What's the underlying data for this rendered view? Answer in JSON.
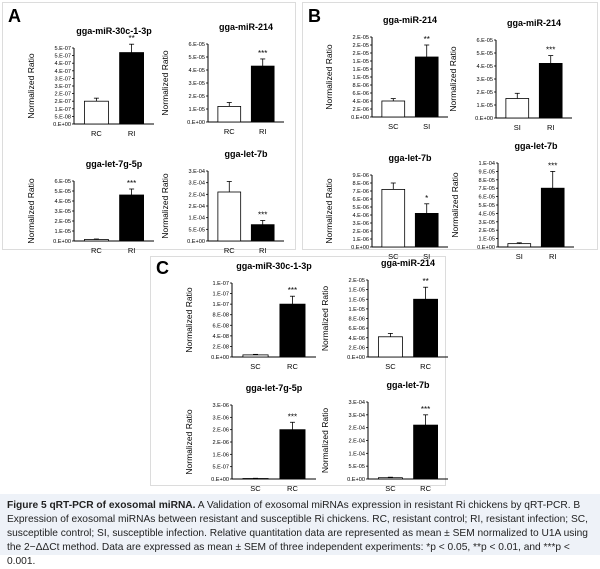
{
  "panels": {
    "a": "A",
    "b": "B",
    "c": "C"
  },
  "ylabel": "Normalized Ratio",
  "colors": {
    "control": "#ffffff",
    "infection": "#000000",
    "axis": "#000000"
  },
  "chart_data": [
    {
      "type": "bar",
      "panel": "A",
      "title": "gga-miR-30c-1-3p",
      "categories": [
        "RC",
        "RI"
      ],
      "values": [
        1.5e-07,
        4.7e-07
      ],
      "errors": [
        2e-08,
        5.5e-08
      ],
      "significance": [
        "",
        "**"
      ],
      "ticks": [
        "0.E+00",
        "5.E-08",
        "1.E-07",
        "2.E-07",
        "2.E-07",
        "3.E-07",
        "3.E-07",
        "4.E-07",
        "4.E-07",
        "5.E-07",
        "5.E-07"
      ],
      "ylim": [
        0,
        5e-07
      ],
      "ylabel": "Normalized Ratio"
    },
    {
      "type": "bar",
      "panel": "A",
      "title": "gga-miR-214",
      "categories": [
        "RC",
        "RI"
      ],
      "values": [
        1.2e-05,
        4.3e-05
      ],
      "errors": [
        3e-06,
        5.5e-06
      ],
      "significance": [
        "",
        "***"
      ],
      "ticks": [
        "0.E+00",
        "1.E-05",
        "2.E-05",
        "3.E-05",
        "4.E-05",
        "5.E-05",
        "6.E-05"
      ],
      "ylim": [
        0,
        6e-05
      ],
      "ylabel": "Normalized Ratio"
    },
    {
      "type": "bar",
      "panel": "A",
      "title": "gga-let-7g-5p",
      "categories": [
        "RC",
        "RI"
      ],
      "values": [
        1.5e-06,
        4.6e-05
      ],
      "errors": [
        5e-07,
        6e-06
      ],
      "significance": [
        "",
        "***"
      ],
      "ticks": [
        "0.E+00",
        "1.E-05",
        "2.E-05",
        "3.E-05",
        "4.E-05",
        "5.E-05",
        "6.E-05"
      ],
      "ylim": [
        0,
        6e-05
      ],
      "ylabel": "Normalized Ratio"
    },
    {
      "type": "bar",
      "panel": "A",
      "title": "gga-let-7b",
      "categories": [
        "RC",
        "RI"
      ],
      "values": [
        0.00021,
        7e-05
      ],
      "errors": [
        4.5e-05,
        1.8e-05
      ],
      "significance": [
        "",
        "***"
      ],
      "ticks": [
        "0.E+00",
        "5.E-05",
        "1.E-04",
        "2.E-04",
        "2.E-04",
        "3.E-04",
        "3.E-04"
      ],
      "ylim": [
        0,
        0.0003
      ],
      "ylabel": "Normalized Ratio"
    },
    {
      "type": "bar",
      "panel": "B",
      "title": "gga-miR-214",
      "categories": [
        "SC",
        "SI"
      ],
      "values": [
        4e-06,
        1.5e-05
      ],
      "errors": [
        6e-07,
        3e-06
      ],
      "significance": [
        "",
        "**"
      ],
      "ticks": [
        "0.E+00",
        "2.E-06",
        "4.E-06",
        "6.E-06",
        "8.E-06",
        "1.E-05",
        "1.E-05",
        "1.E-05",
        "2.E-05",
        "2.E-05",
        "2.E-05"
      ],
      "ylim": [
        0,
        2e-05
      ],
      "ylabel": "Normalized Ratio"
    },
    {
      "type": "bar",
      "panel": "B",
      "title": "gga-miR-214",
      "categories": [
        "SI",
        "RI"
      ],
      "values": [
        1.5e-05,
        4.2e-05
      ],
      "errors": [
        4e-06,
        6e-06
      ],
      "significance": [
        "",
        "***"
      ],
      "ticks": [
        "0.E+00",
        "1.E-05",
        "2.E-05",
        "3.E-05",
        "4.E-05",
        "5.E-05",
        "6.E-05"
      ],
      "ylim": [
        0,
        6e-05
      ],
      "ylabel": "Normalized Ratio"
    },
    {
      "type": "bar",
      "panel": "B",
      "title": "gga-let-7b",
      "categories": [
        "SC",
        "SI"
      ],
      "values": [
        7.2e-06,
        4.2e-06
      ],
      "errors": [
        8e-07,
        1.2e-06
      ],
      "significance": [
        "",
        "*"
      ],
      "ticks": [
        "0.E+00",
        "1.E-06",
        "2.E-06",
        "3.E-06",
        "4.E-06",
        "5.E-06",
        "6.E-06",
        "7.E-06",
        "8.E-06",
        "9.E-06"
      ],
      "ylim": [
        0,
        9e-06
      ],
      "ylabel": "Normalized Ratio"
    },
    {
      "type": "bar",
      "panel": "B",
      "title": "gga-let-7b",
      "categories": [
        "SI",
        "RI"
      ],
      "values": [
        4e-06,
        7e-05
      ],
      "errors": [
        1e-06,
        2e-05
      ],
      "significance": [
        "",
        "***"
      ],
      "ticks": [
        "0.E+00",
        "1.E-05",
        "2.E-05",
        "3.E-05",
        "4.E-05",
        "5.E-05",
        "6.E-05",
        "7.E-05",
        "8.E-05",
        "9.E-05",
        "1.E-04"
      ],
      "ylim": [
        0,
        0.0001
      ],
      "ylabel": "Normalized Ratio"
    },
    {
      "type": "bar",
      "panel": "C",
      "title": "gga-miR-30c-1-3p",
      "categories": [
        "SC",
        "RC"
      ],
      "values": [
        4e-09,
        1e-07
      ],
      "errors": [
        1e-09,
        1.5e-08
      ],
      "significance": [
        "",
        "***"
      ],
      "ticks": [
        "0.E+00",
        "2.E-08",
        "4.E-08",
        "6.E-08",
        "8.E-08",
        "1.E-07",
        "1.E-07",
        "1.E-07"
      ],
      "ylim": [
        0,
        1.4e-07
      ],
      "ylabel": "Normalized Ratio"
    },
    {
      "type": "bar",
      "panel": "C",
      "title": "gga-miR-214",
      "categories": [
        "SC",
        "RC"
      ],
      "values": [
        4.2e-06,
        1.2e-05
      ],
      "errors": [
        7e-07,
        2.5e-06
      ],
      "significance": [
        "",
        "**"
      ],
      "ticks": [
        "0.E+00",
        "2.E-06",
        "4.E-06",
        "6.E-06",
        "8.E-06",
        "1.E-05",
        "1.E-05",
        "1.E-05",
        "2.E-05"
      ],
      "ylim": [
        0,
        1.6e-05
      ],
      "ylabel": "Normalized Ratio"
    },
    {
      "type": "bar",
      "panel": "C",
      "title": "gga-let-7g-5p",
      "categories": [
        "SC",
        "RC"
      ],
      "values": [
        2e-08,
        2e-06
      ],
      "errors": [
        1e-08,
        3e-07
      ],
      "significance": [
        "",
        "***"
      ],
      "ticks": [
        "0.E+00",
        "5.E-07",
        "1.E-06",
        "2.E-06",
        "2.E-06",
        "3.E-06",
        "3.E-06"
      ],
      "ylim": [
        0,
        3e-06
      ],
      "ylabel": "Normalized Ratio"
    },
    {
      "type": "bar",
      "panel": "C",
      "title": "gga-let-7b",
      "categories": [
        "SC",
        "RC"
      ],
      "values": [
        5e-06,
        0.00021
      ],
      "errors": [
        2e-06,
        4e-05
      ],
      "significance": [
        "",
        "***"
      ],
      "ticks": [
        "0.E+00",
        "5.E-05",
        "1.E-04",
        "2.E-04",
        "2.E-04",
        "3.E-04",
        "3.E-04"
      ],
      "ylim": [
        0,
        0.0003
      ],
      "ylabel": "Normalized Ratio"
    }
  ],
  "caption": {
    "head": "Figure 5 qRT-PCR of exosomal miRNA.",
    "body": "A Validation of exosomal miRNAs expression in resistant Ri chickens by qRT-PCR. B Expression of exosomal miRNAs between resistant and susceptible Ri chickens. RC, resistant control; RI, resistant infection; SC, susceptible control; SI, susceptible infection. Relative quantitation data are represented as mean ± SEM normalized to U1A using the 2−ΔΔCt method. Data are expressed as mean ± SEM of three independent experiments: *p < 0.05, **p < 0.01, and ***p < 0.001."
  }
}
